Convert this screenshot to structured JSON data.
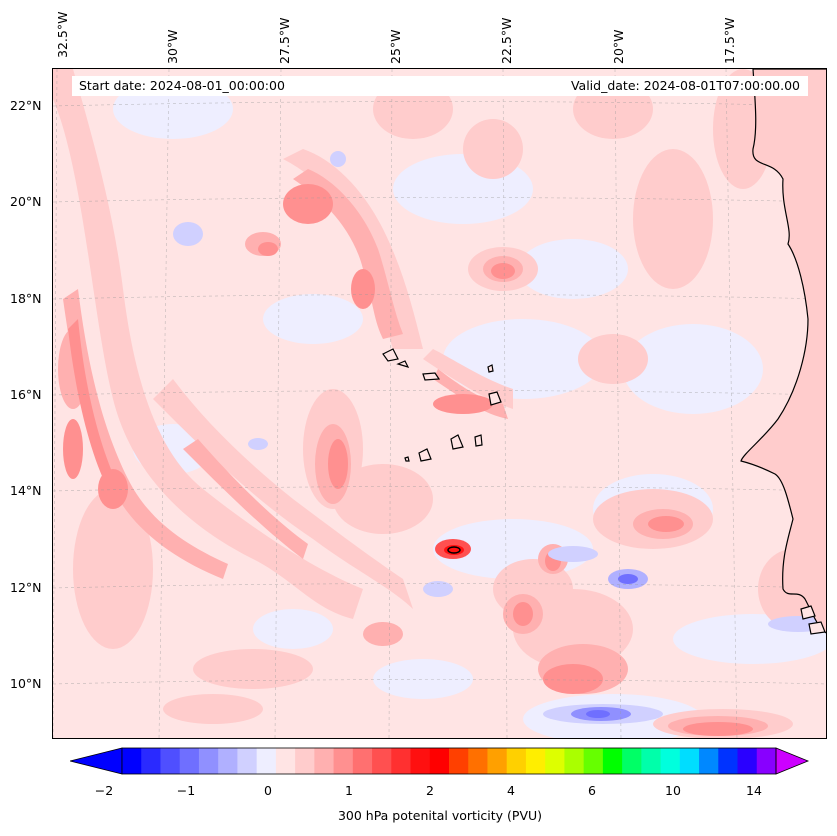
{
  "map": {
    "title_left": "Start date: 2024-08-01_00:00:00",
    "title_right": "Valid_date: 2024-08-01T07:00:00.00",
    "field": "300 hPa potenital vorticity (PVU)",
    "lon_labels": [
      "32.5°W",
      "30°W",
      "27.5°W",
      "25°W",
      "22.5°W",
      "20°W",
      "17.5°W"
    ],
    "lat_labels": [
      "22°N",
      "20°N",
      "18°N",
      "16°N",
      "14°N",
      "12°N",
      "10°N"
    ]
  },
  "colorbar": {
    "label": "300 hPa potenital vorticity (PVU)",
    "ticks": [
      "−2",
      "−1",
      "0",
      "1",
      "2",
      "4",
      "6",
      "10",
      "14"
    ],
    "colors": [
      "#0000ff",
      "#2a2aff",
      "#4f4fff",
      "#6f6fff",
      "#9090ff",
      "#b0b0ff",
      "#d0d0ff",
      "#eeeeff",
      "#ffe4e4",
      "#ffcccc",
      "#ffb0b0",
      "#ff9090",
      "#ff7070",
      "#ff5050",
      "#ff3030",
      "#ff1010",
      "#ff0000",
      "#ff4000",
      "#ff7000",
      "#ffa000",
      "#ffd000",
      "#ffee00",
      "#ddff00",
      "#aaff00",
      "#66ff00",
      "#00ff00",
      "#00ff66",
      "#00ffaa",
      "#00ffdd",
      "#00ddff",
      "#0088ff",
      "#0033ff",
      "#2a00ff",
      "#8800ff"
    ],
    "min_color": "#0000ff",
    "max_color": "#cc00ff"
  }
}
